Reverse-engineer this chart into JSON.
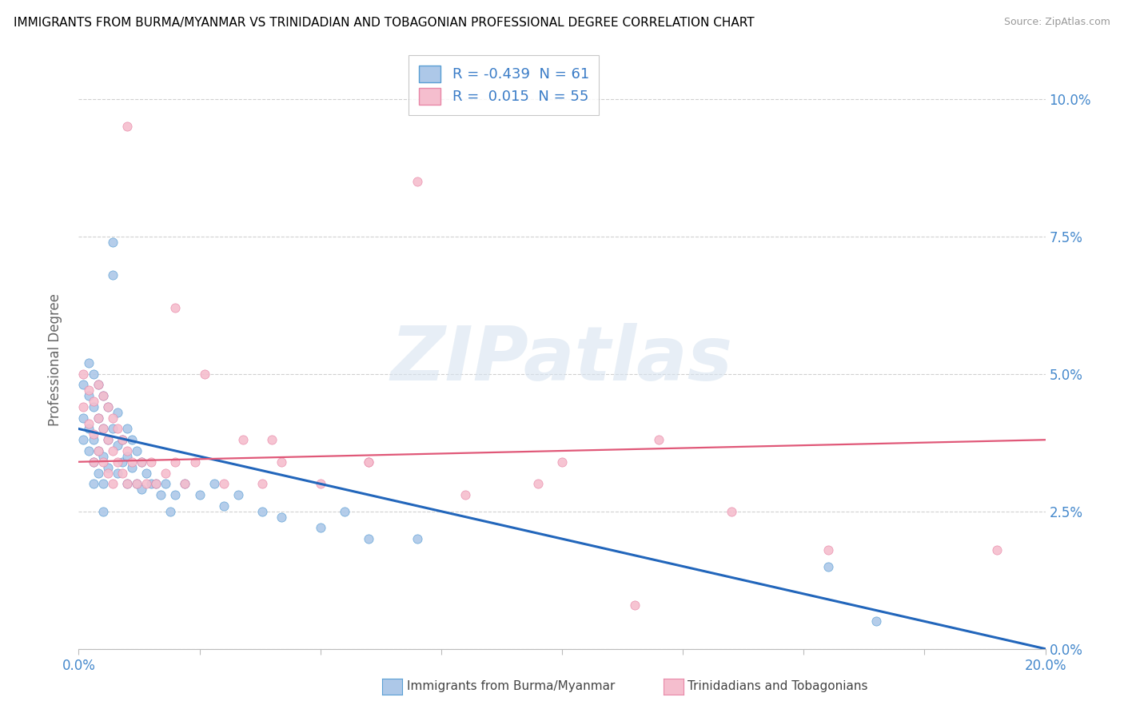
{
  "title": "IMMIGRANTS FROM BURMA/MYANMAR VS TRINIDADIAN AND TOBAGONIAN PROFESSIONAL DEGREE CORRELATION CHART",
  "source": "Source: ZipAtlas.com",
  "ylabel": "Professional Degree",
  "series1_label": "Immigrants from Burma/Myanmar",
  "series1_R": "-0.439",
  "series1_N": "61",
  "series1_color": "#adc8e8",
  "series1_edge_color": "#5a9fd4",
  "series1_line_color": "#2266bb",
  "series2_label": "Trinidadians and Tobagonians",
  "series2_R": "0.015",
  "series2_N": "55",
  "series2_color": "#f5bece",
  "series2_edge_color": "#e888a8",
  "series2_line_color": "#e05878",
  "background_color": "#ffffff",
  "grid_color": "#d0d0d0",
  "tick_color": "#4488cc",
  "xlim": [
    0.0,
    0.2
  ],
  "ylim": [
    0.0,
    0.105
  ],
  "yticks": [
    0.0,
    0.025,
    0.05,
    0.075,
    0.1
  ],
  "xtick_positions": [
    0.0,
    0.025,
    0.05,
    0.075,
    0.1,
    0.125,
    0.15,
    0.175,
    0.2
  ],
  "watermark_text": "ZIPatlas",
  "series1_x": [
    0.001,
    0.001,
    0.001,
    0.002,
    0.002,
    0.002,
    0.002,
    0.003,
    0.003,
    0.003,
    0.003,
    0.003,
    0.004,
    0.004,
    0.004,
    0.004,
    0.005,
    0.005,
    0.005,
    0.005,
    0.005,
    0.006,
    0.006,
    0.006,
    0.007,
    0.007,
    0.007,
    0.008,
    0.008,
    0.008,
    0.009,
    0.009,
    0.01,
    0.01,
    0.01,
    0.011,
    0.011,
    0.012,
    0.012,
    0.013,
    0.013,
    0.014,
    0.015,
    0.016,
    0.017,
    0.018,
    0.019,
    0.02,
    0.022,
    0.025,
    0.028,
    0.03,
    0.033,
    0.038,
    0.042,
    0.05,
    0.055,
    0.06,
    0.07,
    0.155,
    0.165
  ],
  "series1_y": [
    0.048,
    0.042,
    0.038,
    0.052,
    0.046,
    0.04,
    0.036,
    0.05,
    0.044,
    0.038,
    0.034,
    0.03,
    0.048,
    0.042,
    0.036,
    0.032,
    0.046,
    0.04,
    0.035,
    0.03,
    0.025,
    0.044,
    0.038,
    0.033,
    0.074,
    0.068,
    0.04,
    0.043,
    0.037,
    0.032,
    0.038,
    0.034,
    0.04,
    0.035,
    0.03,
    0.038,
    0.033,
    0.036,
    0.03,
    0.034,
    0.029,
    0.032,
    0.03,
    0.03,
    0.028,
    0.03,
    0.025,
    0.028,
    0.03,
    0.028,
    0.03,
    0.026,
    0.028,
    0.025,
    0.024,
    0.022,
    0.025,
    0.02,
    0.02,
    0.015,
    0.005
  ],
  "series2_x": [
    0.001,
    0.001,
    0.002,
    0.002,
    0.003,
    0.003,
    0.003,
    0.004,
    0.004,
    0.004,
    0.005,
    0.005,
    0.005,
    0.006,
    0.006,
    0.006,
    0.007,
    0.007,
    0.007,
    0.008,
    0.008,
    0.009,
    0.009,
    0.01,
    0.01,
    0.011,
    0.012,
    0.013,
    0.014,
    0.015,
    0.016,
    0.018,
    0.02,
    0.022,
    0.024,
    0.026,
    0.03,
    0.034,
    0.038,
    0.042,
    0.05,
    0.06,
    0.07,
    0.08,
    0.095,
    0.1,
    0.115,
    0.12,
    0.135,
    0.155,
    0.01,
    0.02,
    0.04,
    0.06,
    0.19
  ],
  "series2_y": [
    0.05,
    0.044,
    0.047,
    0.041,
    0.045,
    0.039,
    0.034,
    0.048,
    0.042,
    0.036,
    0.046,
    0.04,
    0.034,
    0.044,
    0.038,
    0.032,
    0.042,
    0.036,
    0.03,
    0.04,
    0.034,
    0.038,
    0.032,
    0.036,
    0.03,
    0.034,
    0.03,
    0.034,
    0.03,
    0.034,
    0.03,
    0.032,
    0.034,
    0.03,
    0.034,
    0.05,
    0.03,
    0.038,
    0.03,
    0.034,
    0.03,
    0.034,
    0.085,
    0.028,
    0.03,
    0.034,
    0.008,
    0.038,
    0.025,
    0.018,
    0.095,
    0.062,
    0.038,
    0.034,
    0.018
  ],
  "trend1_x0": 0.0,
  "trend1_y0": 0.04,
  "trend1_x1": 0.2,
  "trend1_y1": 0.0,
  "trend2_x0": 0.0,
  "trend2_y0": 0.034,
  "trend2_x1": 0.2,
  "trend2_y1": 0.038
}
